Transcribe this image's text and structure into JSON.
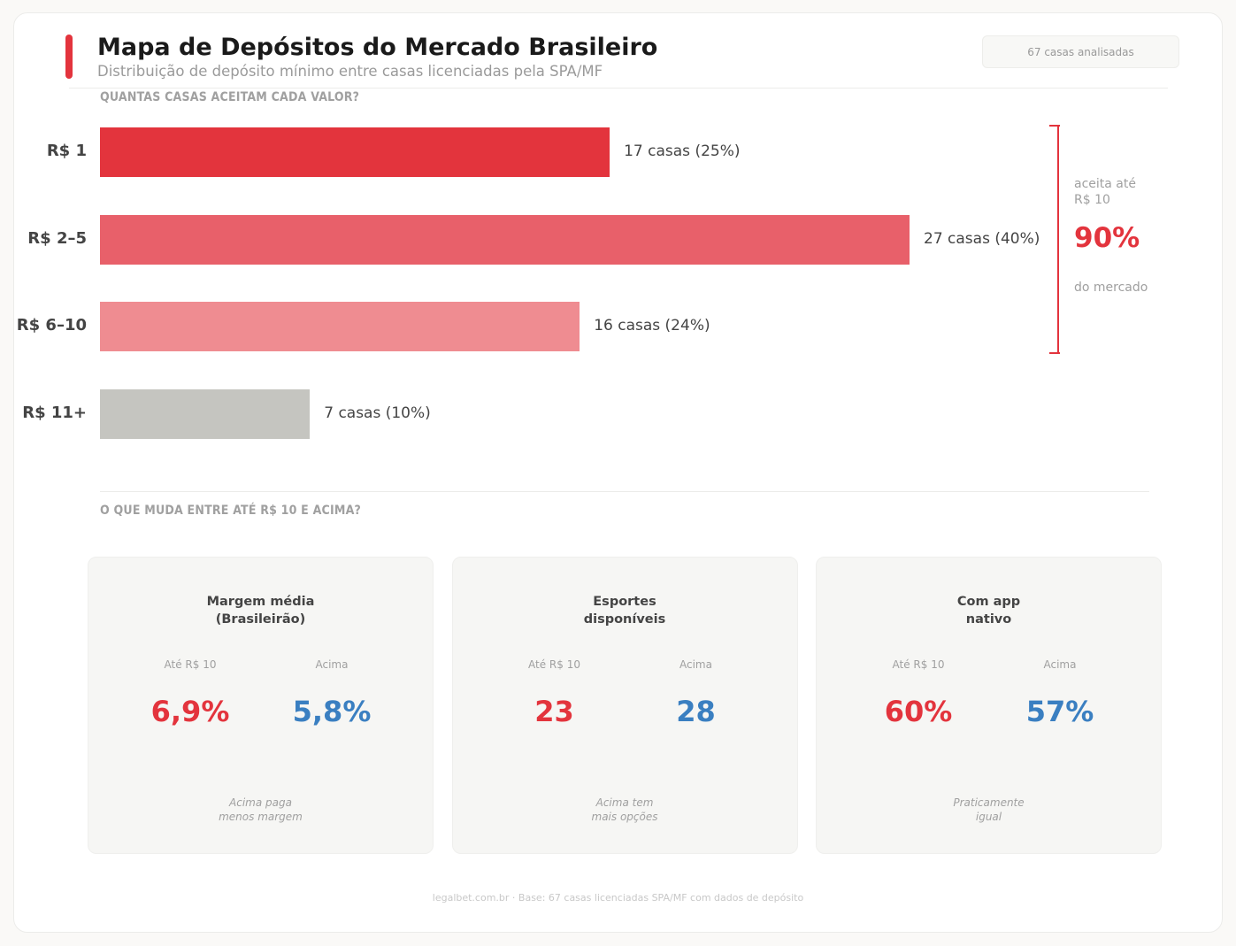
{
  "header": {
    "title": "Mapa de Depósitos do Mercado Brasileiro",
    "subtitle": "Distribuição de depósito mínimo entre casas licenciadas pela SPA/MF",
    "badge": "67 casas analisadas"
  },
  "section1": "QUANTAS CASAS ACEITAM CADA VALOR?",
  "chart_data": {
    "type": "bar",
    "orientation": "horizontal",
    "title": "QUANTAS CASAS ACEITAM CADA VALOR?",
    "categories": [
      "R$ 1",
      "R$ 2–5",
      "R$ 6–10",
      "R$ 11+"
    ],
    "values": [
      17,
      27,
      16,
      7
    ],
    "labels": [
      "17 casas (25%)",
      "27 casas (40%)",
      "16 casas (24%)",
      "7 casas (10%)"
    ],
    "colors": [
      "#e3343d",
      "#e8606a",
      "#ef8c91",
      "#c5c5c0"
    ],
    "xlim": [
      0,
      27
    ],
    "annotation": {
      "line1": "aceita até",
      "line2": "R$ 10",
      "value": "90%",
      "line3": "do mercado",
      "color": "#e3343d"
    }
  },
  "section2": "O QUE MUDA ENTRE ATÉ R$ 10 E ACIMA?",
  "panels": [
    {
      "title1": "Margem média",
      "title2": "(Brasileirão)",
      "left_label": "Até R$ 10",
      "left_value": "6,9%",
      "right_label": "Acima",
      "right_value": "5,8%",
      "note1": "Acima paga",
      "note2": "menos margem"
    },
    {
      "title1": "Esportes",
      "title2": "disponíveis",
      "left_label": "Até R$ 10",
      "left_value": "23",
      "right_label": "Acima",
      "right_value": "28",
      "note1": "Acima tem",
      "note2": "mais opções"
    },
    {
      "title1": "Com app",
      "title2": "nativo",
      "left_label": "Até R$ 10",
      "left_value": "60%",
      "right_label": "Acima",
      "right_value": "57%",
      "note1": "Praticamente",
      "note2": "igual"
    }
  ],
  "colors": {
    "low": "#e3343d",
    "high": "#3a7fc1"
  },
  "footer": "legalbet.com.br · Base: 67 casas licenciadas SPA/MF com dados de depósito"
}
